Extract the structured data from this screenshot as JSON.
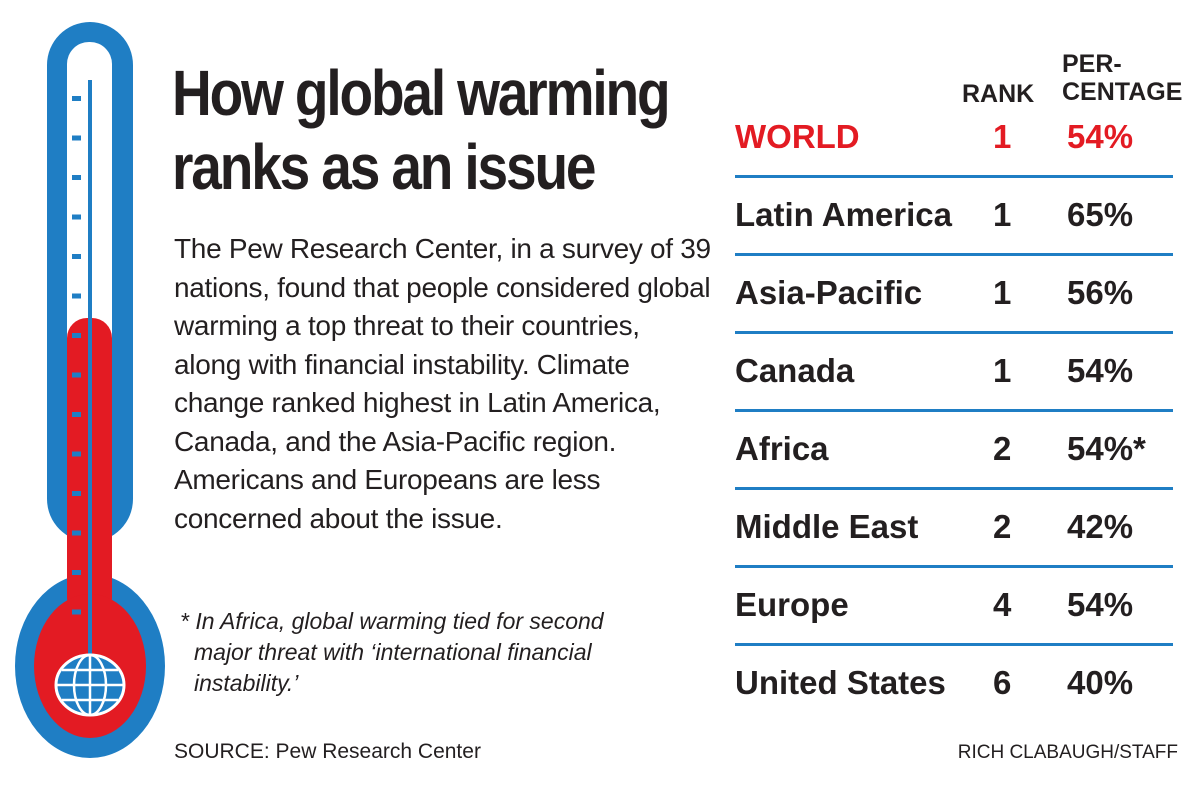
{
  "title": "How global warming ranks as an issue",
  "body": "The Pew Research Center, in a survey of 39 nations, found that people considered global warming a top threat to their countries, along with financial instability. Climate change ranked highest in Latin America, Canada, and the Asia-Pacific region. Americans and Europeans are less concerned about the issue.",
  "footnote": "* In Africa, global warming tied for second major threat with ‘international financial instability.’",
  "source": "SOURCE: Pew Research Center",
  "credit": "RICH CLABAUGH/STAFF",
  "colors": {
    "blue": "#1f7ec4",
    "red": "#e31b23"
  },
  "chart_data": {
    "type": "table",
    "columns": [
      "",
      "RANK",
      "PER-CENTAGE"
    ],
    "header": {
      "rank": "RANK",
      "pct1": "PER-",
      "pct2": "CENTAGE"
    },
    "rows": [
      {
        "region": "WORLD",
        "rank": "1",
        "pct": "54%"
      },
      {
        "region": "Latin America",
        "rank": "1",
        "pct": "65%"
      },
      {
        "region": "Asia-Pacific",
        "rank": "1",
        "pct": "56%"
      },
      {
        "region": "Canada",
        "rank": "1",
        "pct": "54%"
      },
      {
        "region": "Africa",
        "rank": "2",
        "pct": "54%*"
      },
      {
        "region": "Middle East",
        "rank": "2",
        "pct": "42%"
      },
      {
        "region": "Europe",
        "rank": "4",
        "pct": "54%"
      },
      {
        "region": "United States",
        "rank": "6",
        "pct": "40%"
      }
    ],
    "thermometer_fill": 0.54
  }
}
